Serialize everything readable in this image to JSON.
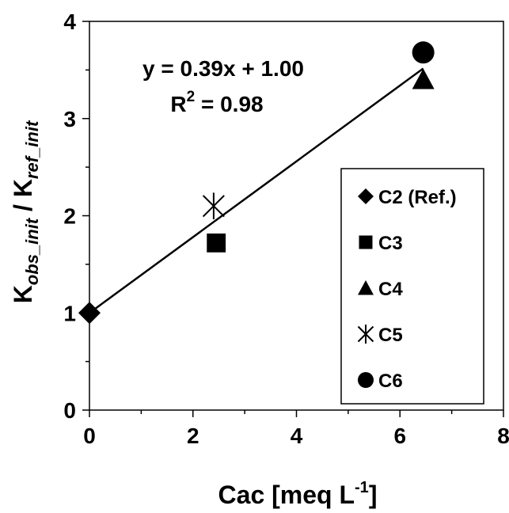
{
  "chart_data": {
    "type": "scatter",
    "title": "",
    "xlabel": {
      "main": "Cac [meq L",
      "sup": "-1",
      "end": "]"
    },
    "ylabel": {
      "k1": "K",
      "sub1": "obs_init",
      "mid": " / K",
      "sub2": "ref_init"
    },
    "xlim": [
      0,
      8
    ],
    "ylim": [
      0,
      4
    ],
    "x_ticks": [
      "0",
      "2",
      "4",
      "6",
      "8"
    ],
    "y_ticks": [
      "0",
      "1",
      "2",
      "3",
      "4"
    ],
    "grid": false,
    "series": [
      {
        "name": "C2 (Ref.)",
        "marker": "diamond",
        "x": [
          0
        ],
        "y": [
          1.0
        ]
      },
      {
        "name": "C3",
        "marker": "square",
        "x": [
          2.45
        ],
        "y": [
          1.72
        ]
      },
      {
        "name": "C4",
        "marker": "triangle",
        "x": [
          6.45
        ],
        "y": [
          3.4
        ]
      },
      {
        "name": "C5",
        "marker": "asterisk",
        "x": [
          2.4
        ],
        "y": [
          2.1
        ]
      },
      {
        "name": "C6",
        "marker": "circle",
        "x": [
          6.45
        ],
        "y": [
          3.68
        ]
      }
    ],
    "trendline": {
      "slope": 0.39,
      "intercept": 1.0,
      "x_range": [
        0,
        6.45
      ],
      "equation": "y = 0.39x + 1.00",
      "r2": {
        "main": "R",
        "sup": "2",
        "value": " = 0.98"
      }
    },
    "legend_position": "right",
    "colors": {
      "marker": "#000000",
      "line": "#000000"
    }
  }
}
